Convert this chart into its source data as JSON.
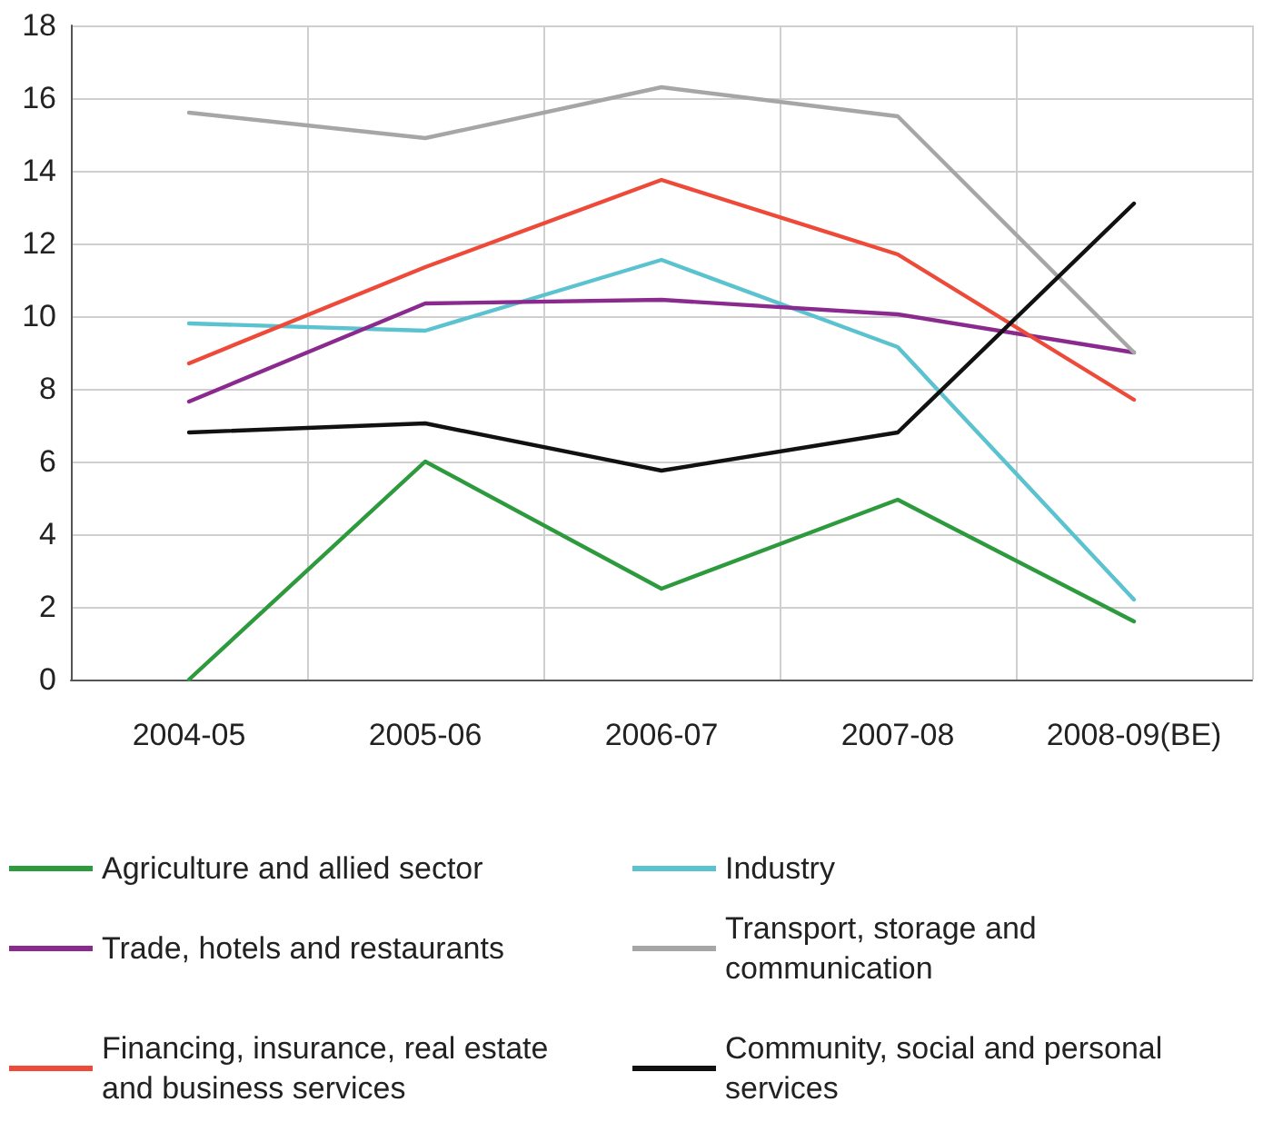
{
  "chart_data": {
    "type": "line",
    "categories": [
      "2004-05",
      "2005-06",
      "2006-07",
      "2007-08",
      "2008-09(BE)"
    ],
    "series": [
      {
        "name": "Agriculture and allied sector",
        "color": "#2e9a3e",
        "values": [
          0,
          6.0,
          2.5,
          4.95,
          1.6
        ]
      },
      {
        "name": "Industry",
        "color": "#5bc2d0",
        "values": [
          9.8,
          9.6,
          11.55,
          9.15,
          2.2
        ]
      },
      {
        "name": "Trade, hotels and restaurants",
        "color": "#8b2a8e",
        "values": [
          7.65,
          10.35,
          10.45,
          10.05,
          9.0
        ]
      },
      {
        "name": "Transport, storage and communication",
        "color": "#a6a6a6",
        "values": [
          15.6,
          14.9,
          16.3,
          15.5,
          9.0
        ]
      },
      {
        "name": "Financing, insurance, real estate and business services",
        "color": "#ee4a3a",
        "values": [
          8.7,
          11.35,
          13.75,
          11.7,
          7.7
        ]
      },
      {
        "name": "Community, social and personal services",
        "color": "#111111",
        "values": [
          6.8,
          7.05,
          5.75,
          6.8,
          13.1
        ]
      }
    ],
    "ylim": [
      0,
      18
    ],
    "yticks": [
      0,
      2,
      4,
      6,
      8,
      10,
      12,
      14,
      16,
      18
    ],
    "grid": true,
    "legend": "bottom",
    "marker": "none",
    "line_style": "solid"
  }
}
